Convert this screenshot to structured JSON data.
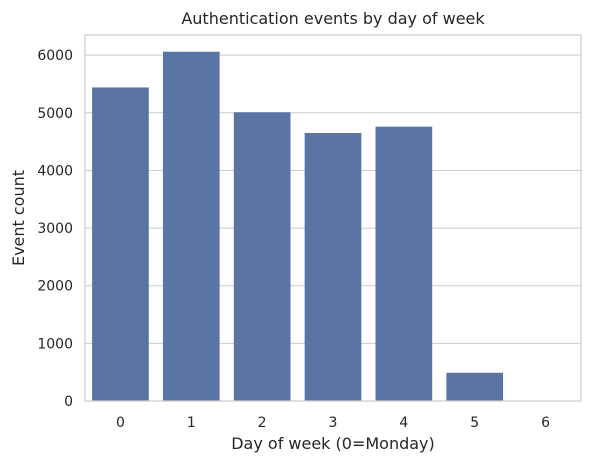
{
  "chart_data": {
    "type": "bar",
    "title": "Authentication events by day of week",
    "xlabel": "Day of week (0=Monday)",
    "ylabel": "Event count",
    "categories": [
      "0",
      "1",
      "2",
      "3",
      "4",
      "5",
      "6"
    ],
    "values": [
      5440,
      6060,
      5010,
      4650,
      4760,
      490,
      0
    ],
    "ylim": [
      0,
      6350
    ],
    "yticks": [
      0,
      1000,
      2000,
      3000,
      4000,
      5000,
      6000
    ],
    "grid": true,
    "legend": false,
    "colors": {
      "bar": "#5975a4",
      "grid": "#cccccc",
      "axis": "#cccccc",
      "text": "#262626",
      "background": "#ffffff"
    }
  }
}
